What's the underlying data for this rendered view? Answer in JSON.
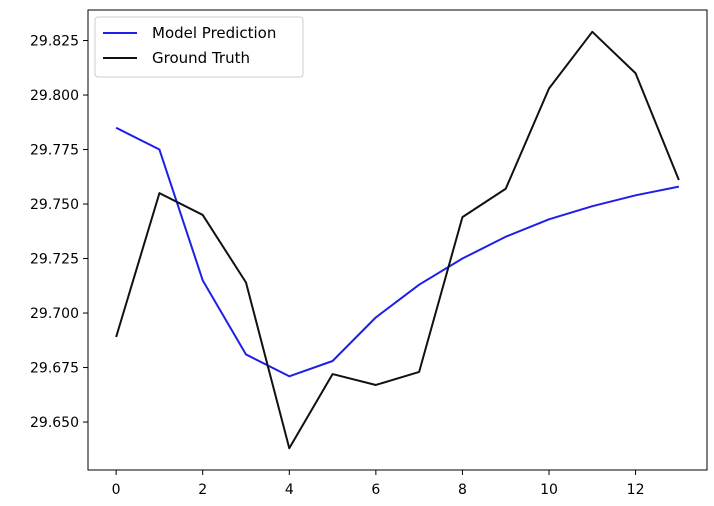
{
  "chart_data": {
    "type": "line",
    "x": [
      0,
      1,
      2,
      3,
      4,
      5,
      6,
      7,
      8,
      9,
      10,
      11,
      12,
      13
    ],
    "series": [
      {
        "name": "Model Prediction",
        "color": "#1f1fe8",
        "values": [
          29.785,
          29.775,
          29.715,
          29.681,
          29.671,
          29.678,
          29.698,
          29.713,
          29.725,
          29.735,
          29.743,
          29.749,
          29.754,
          29.758
        ]
      },
      {
        "name": "Ground Truth",
        "color": "#111111",
        "values": [
          29.689,
          29.755,
          29.745,
          29.714,
          29.638,
          29.672,
          29.667,
          29.673,
          29.744,
          29.757,
          29.803,
          29.829,
          29.81,
          29.761
        ]
      }
    ],
    "xticks": [
      0,
      2,
      4,
      6,
      8,
      10,
      12
    ],
    "xtick_labels": [
      "0",
      "2",
      "4",
      "6",
      "8",
      "10",
      "12"
    ],
    "yticks": [
      29.65,
      29.675,
      29.7,
      29.725,
      29.75,
      29.775,
      29.8,
      29.825
    ],
    "ytick_labels": [
      "29.650",
      "29.675",
      "29.700",
      "29.725",
      "29.750",
      "29.775",
      "29.800",
      "29.825"
    ],
    "xlim": [
      -0.65,
      13.65
    ],
    "ylim": [
      29.628,
      29.839
    ],
    "grid": false,
    "legend_position": "top-left",
    "title": "",
    "xlabel": "",
    "ylabel": ""
  }
}
